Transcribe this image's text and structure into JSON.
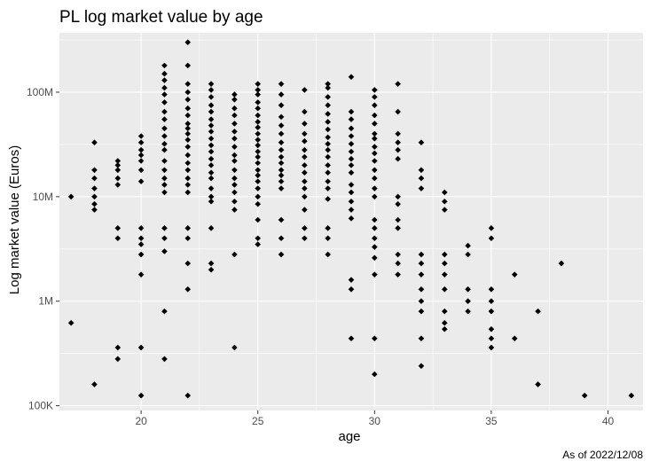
{
  "chart_data": {
    "type": "scatter",
    "title": "PL log market value by age",
    "xlabel": "age",
    "ylabel": "Log market value (Euros)",
    "caption": "As of 2022/12/08",
    "x_scale": "linear",
    "y_scale": "log10",
    "xlim": [
      16.5,
      41.5
    ],
    "ylim": [
      90000,
      370000000
    ],
    "x_ticks": [
      20,
      25,
      30,
      35,
      40
    ],
    "x_tick_labels": [
      "20",
      "25",
      "30",
      "35",
      "40"
    ],
    "y_ticks": [
      100000,
      1000000,
      10000000,
      100000000
    ],
    "y_tick_labels": [
      "100K",
      "1M",
      "10M",
      "100M"
    ],
    "grid": true,
    "legend": "none",
    "colors": {
      "panel": "#ebebeb",
      "grid": "#ffffff",
      "point": "#000000",
      "tick": "#4d4d4d"
    },
    "point_shape": "diamond",
    "points": [
      [
        17,
        10000000
      ],
      [
        17,
        620000
      ],
      [
        18,
        33000000
      ],
      [
        18,
        18000000
      ],
      [
        18,
        15000000
      ],
      [
        18,
        12000000
      ],
      [
        18,
        10000000
      ],
      [
        18,
        8500000
      ],
      [
        18,
        7500000
      ],
      [
        18,
        160000
      ],
      [
        19,
        22000000
      ],
      [
        19,
        20000000
      ],
      [
        19,
        18000000
      ],
      [
        19,
        15000000
      ],
      [
        19,
        13000000
      ],
      [
        19,
        5000000
      ],
      [
        19,
        4000000
      ],
      [
        19,
        360000
      ],
      [
        19,
        280000
      ],
      [
        20,
        38000000
      ],
      [
        20,
        33000000
      ],
      [
        20,
        28000000
      ],
      [
        20,
        25000000
      ],
      [
        20,
        22000000
      ],
      [
        20,
        18000000
      ],
      [
        20,
        14000000
      ],
      [
        20,
        5000000
      ],
      [
        20,
        4000000
      ],
      [
        20,
        3500000
      ],
      [
        20,
        2800000
      ],
      [
        20,
        1800000
      ],
      [
        20,
        360000
      ],
      [
        20,
        125000
      ],
      [
        21,
        180000000
      ],
      [
        21,
        150000000
      ],
      [
        21,
        130000000
      ],
      [
        21,
        110000000
      ],
      [
        21,
        95000000
      ],
      [
        21,
        80000000
      ],
      [
        21,
        65000000
      ],
      [
        21,
        55000000
      ],
      [
        21,
        45000000
      ],
      [
        21,
        38000000
      ],
      [
        21,
        32000000
      ],
      [
        21,
        28000000
      ],
      [
        21,
        22000000
      ],
      [
        21,
        18000000
      ],
      [
        21,
        15000000
      ],
      [
        21,
        13000000
      ],
      [
        21,
        11000000
      ],
      [
        21,
        5000000
      ],
      [
        21,
        4000000
      ],
      [
        21,
        3000000
      ],
      [
        21,
        800000
      ],
      [
        21,
        280000
      ],
      [
        22,
        300000000
      ],
      [
        22,
        180000000
      ],
      [
        22,
        120000000
      ],
      [
        22,
        100000000
      ],
      [
        22,
        85000000
      ],
      [
        22,
        70000000
      ],
      [
        22,
        60000000
      ],
      [
        22,
        50000000
      ],
      [
        22,
        45000000
      ],
      [
        22,
        40000000
      ],
      [
        22,
        35000000
      ],
      [
        22,
        30000000
      ],
      [
        22,
        25000000
      ],
      [
        22,
        21000000
      ],
      [
        22,
        18000000
      ],
      [
        22,
        15000000
      ],
      [
        22,
        13000000
      ],
      [
        22,
        11000000
      ],
      [
        22,
        5000000
      ],
      [
        22,
        4000000
      ],
      [
        22,
        2300000
      ],
      [
        22,
        1300000
      ],
      [
        22,
        125000
      ],
      [
        23,
        120000000
      ],
      [
        23,
        105000000
      ],
      [
        23,
        90000000
      ],
      [
        23,
        75000000
      ],
      [
        23,
        65000000
      ],
      [
        23,
        55000000
      ],
      [
        23,
        48000000
      ],
      [
        23,
        42000000
      ],
      [
        23,
        36000000
      ],
      [
        23,
        31000000
      ],
      [
        23,
        27000000
      ],
      [
        23,
        23000000
      ],
      [
        23,
        20000000
      ],
      [
        23,
        17000000
      ],
      [
        23,
        15000000
      ],
      [
        23,
        12000000
      ],
      [
        23,
        10000000
      ],
      [
        23,
        9000000
      ],
      [
        23,
        5000000
      ],
      [
        23,
        2300000
      ],
      [
        23,
        2000000
      ],
      [
        24,
        95000000
      ],
      [
        24,
        85000000
      ],
      [
        24,
        70000000
      ],
      [
        24,
        60000000
      ],
      [
        24,
        50000000
      ],
      [
        24,
        42000000
      ],
      [
        24,
        36000000
      ],
      [
        24,
        30000000
      ],
      [
        24,
        25000000
      ],
      [
        24,
        22000000
      ],
      [
        24,
        18000000
      ],
      [
        24,
        15000000
      ],
      [
        24,
        13000000
      ],
      [
        24,
        11000000
      ],
      [
        24,
        9000000
      ],
      [
        24,
        7500000
      ],
      [
        24,
        2800000
      ],
      [
        24,
        360000
      ],
      [
        25,
        120000000
      ],
      [
        25,
        105000000
      ],
      [
        25,
        95000000
      ],
      [
        25,
        80000000
      ],
      [
        25,
        70000000
      ],
      [
        25,
        60000000
      ],
      [
        25,
        52000000
      ],
      [
        25,
        46000000
      ],
      [
        25,
        40000000
      ],
      [
        25,
        35000000
      ],
      [
        25,
        31000000
      ],
      [
        25,
        27000000
      ],
      [
        25,
        24000000
      ],
      [
        25,
        21000000
      ],
      [
        25,
        18000000
      ],
      [
        25,
        16000000
      ],
      [
        25,
        14000000
      ],
      [
        25,
        12000000
      ],
      [
        25,
        10000000
      ],
      [
        25,
        8500000
      ],
      [
        25,
        6000000
      ],
      [
        25,
        4000000
      ],
      [
        25,
        3500000
      ],
      [
        26,
        120000000
      ],
      [
        26,
        95000000
      ],
      [
        26,
        75000000
      ],
      [
        26,
        58000000
      ],
      [
        26,
        48000000
      ],
      [
        26,
        40000000
      ],
      [
        26,
        33000000
      ],
      [
        26,
        28000000
      ],
      [
        26,
        24000000
      ],
      [
        26,
        21000000
      ],
      [
        26,
        18000000
      ],
      [
        26,
        16000000
      ],
      [
        26,
        14000000
      ],
      [
        26,
        12000000
      ],
      [
        26,
        6000000
      ],
      [
        26,
        4000000
      ],
      [
        26,
        2800000
      ],
      [
        27,
        105000000
      ],
      [
        27,
        65000000
      ],
      [
        27,
        50000000
      ],
      [
        27,
        40000000
      ],
      [
        27,
        34000000
      ],
      [
        27,
        28000000
      ],
      [
        27,
        24000000
      ],
      [
        27,
        20000000
      ],
      [
        27,
        17000000
      ],
      [
        27,
        14000000
      ],
      [
        27,
        12000000
      ],
      [
        27,
        10000000
      ],
      [
        27,
        7500000
      ],
      [
        27,
        5000000
      ],
      [
        27,
        4000000
      ],
      [
        28,
        120000000
      ],
      [
        28,
        110000000
      ],
      [
        28,
        90000000
      ],
      [
        28,
        75000000
      ],
      [
        28,
        62000000
      ],
      [
        28,
        52000000
      ],
      [
        28,
        44000000
      ],
      [
        28,
        37000000
      ],
      [
        28,
        32000000
      ],
      [
        28,
        28000000
      ],
      [
        28,
        24000000
      ],
      [
        28,
        20000000
      ],
      [
        28,
        17000000
      ],
      [
        28,
        14000000
      ],
      [
        28,
        12000000
      ],
      [
        28,
        9500000
      ],
      [
        28,
        5000000
      ],
      [
        28,
        4000000
      ],
      [
        28,
        2800000
      ],
      [
        29,
        140000000
      ],
      [
        29,
        65000000
      ],
      [
        29,
        55000000
      ],
      [
        29,
        45000000
      ],
      [
        29,
        38000000
      ],
      [
        29,
        32000000
      ],
      [
        29,
        27000000
      ],
      [
        29,
        23000000
      ],
      [
        29,
        20000000
      ],
      [
        29,
        17000000
      ],
      [
        29,
        13000000
      ],
      [
        29,
        11000000
      ],
      [
        29,
        9000000
      ],
      [
        29,
        7500000
      ],
      [
        29,
        6200000
      ],
      [
        29,
        1600000
      ],
      [
        29,
        1300000
      ],
      [
        29,
        440000
      ],
      [
        30,
        105000000
      ],
      [
        30,
        90000000
      ],
      [
        30,
        75000000
      ],
      [
        30,
        60000000
      ],
      [
        30,
        50000000
      ],
      [
        30,
        40000000
      ],
      [
        30,
        36000000
      ],
      [
        30,
        30000000
      ],
      [
        30,
        26000000
      ],
      [
        30,
        22000000
      ],
      [
        30,
        18000000
      ],
      [
        30,
        15000000
      ],
      [
        30,
        12000000
      ],
      [
        30,
        10000000
      ],
      [
        30,
        6000000
      ],
      [
        30,
        5000000
      ],
      [
        30,
        4000000
      ],
      [
        30,
        3300000
      ],
      [
        30,
        2600000
      ],
      [
        30,
        1800000
      ],
      [
        30,
        440000
      ],
      [
        30,
        200000
      ],
      [
        31,
        120000000
      ],
      [
        31,
        65000000
      ],
      [
        31,
        40000000
      ],
      [
        31,
        33000000
      ],
      [
        31,
        28000000
      ],
      [
        31,
        23000000
      ],
      [
        31,
        10000000
      ],
      [
        31,
        8500000
      ],
      [
        31,
        6000000
      ],
      [
        31,
        5000000
      ],
      [
        31,
        2800000
      ],
      [
        31,
        2300000
      ],
      [
        31,
        1800000
      ],
      [
        32,
        33000000
      ],
      [
        32,
        18000000
      ],
      [
        32,
        15000000
      ],
      [
        32,
        12000000
      ],
      [
        32,
        2800000
      ],
      [
        32,
        2300000
      ],
      [
        32,
        1800000
      ],
      [
        32,
        1300000
      ],
      [
        32,
        1000000
      ],
      [
        32,
        800000
      ],
      [
        32,
        440000
      ],
      [
        32,
        240000
      ],
      [
        33,
        11000000
      ],
      [
        33,
        9000000
      ],
      [
        33,
        7500000
      ],
      [
        33,
        2800000
      ],
      [
        33,
        2300000
      ],
      [
        33,
        1800000
      ],
      [
        33,
        1300000
      ],
      [
        33,
        800000
      ],
      [
        33,
        620000
      ],
      [
        33,
        540000
      ],
      [
        34,
        3400000
      ],
      [
        34,
        2800000
      ],
      [
        34,
        1300000
      ],
      [
        34,
        1000000
      ],
      [
        34,
        800000
      ],
      [
        35,
        5000000
      ],
      [
        35,
        4000000
      ],
      [
        35,
        1300000
      ],
      [
        35,
        1000000
      ],
      [
        35,
        800000
      ],
      [
        35,
        540000
      ],
      [
        35,
        440000
      ],
      [
        35,
        360000
      ],
      [
        36,
        1800000
      ],
      [
        36,
        440000
      ],
      [
        37,
        800000
      ],
      [
        37,
        160000
      ],
      [
        38,
        2300000
      ],
      [
        39,
        125000
      ],
      [
        41,
        125000
      ]
    ]
  }
}
